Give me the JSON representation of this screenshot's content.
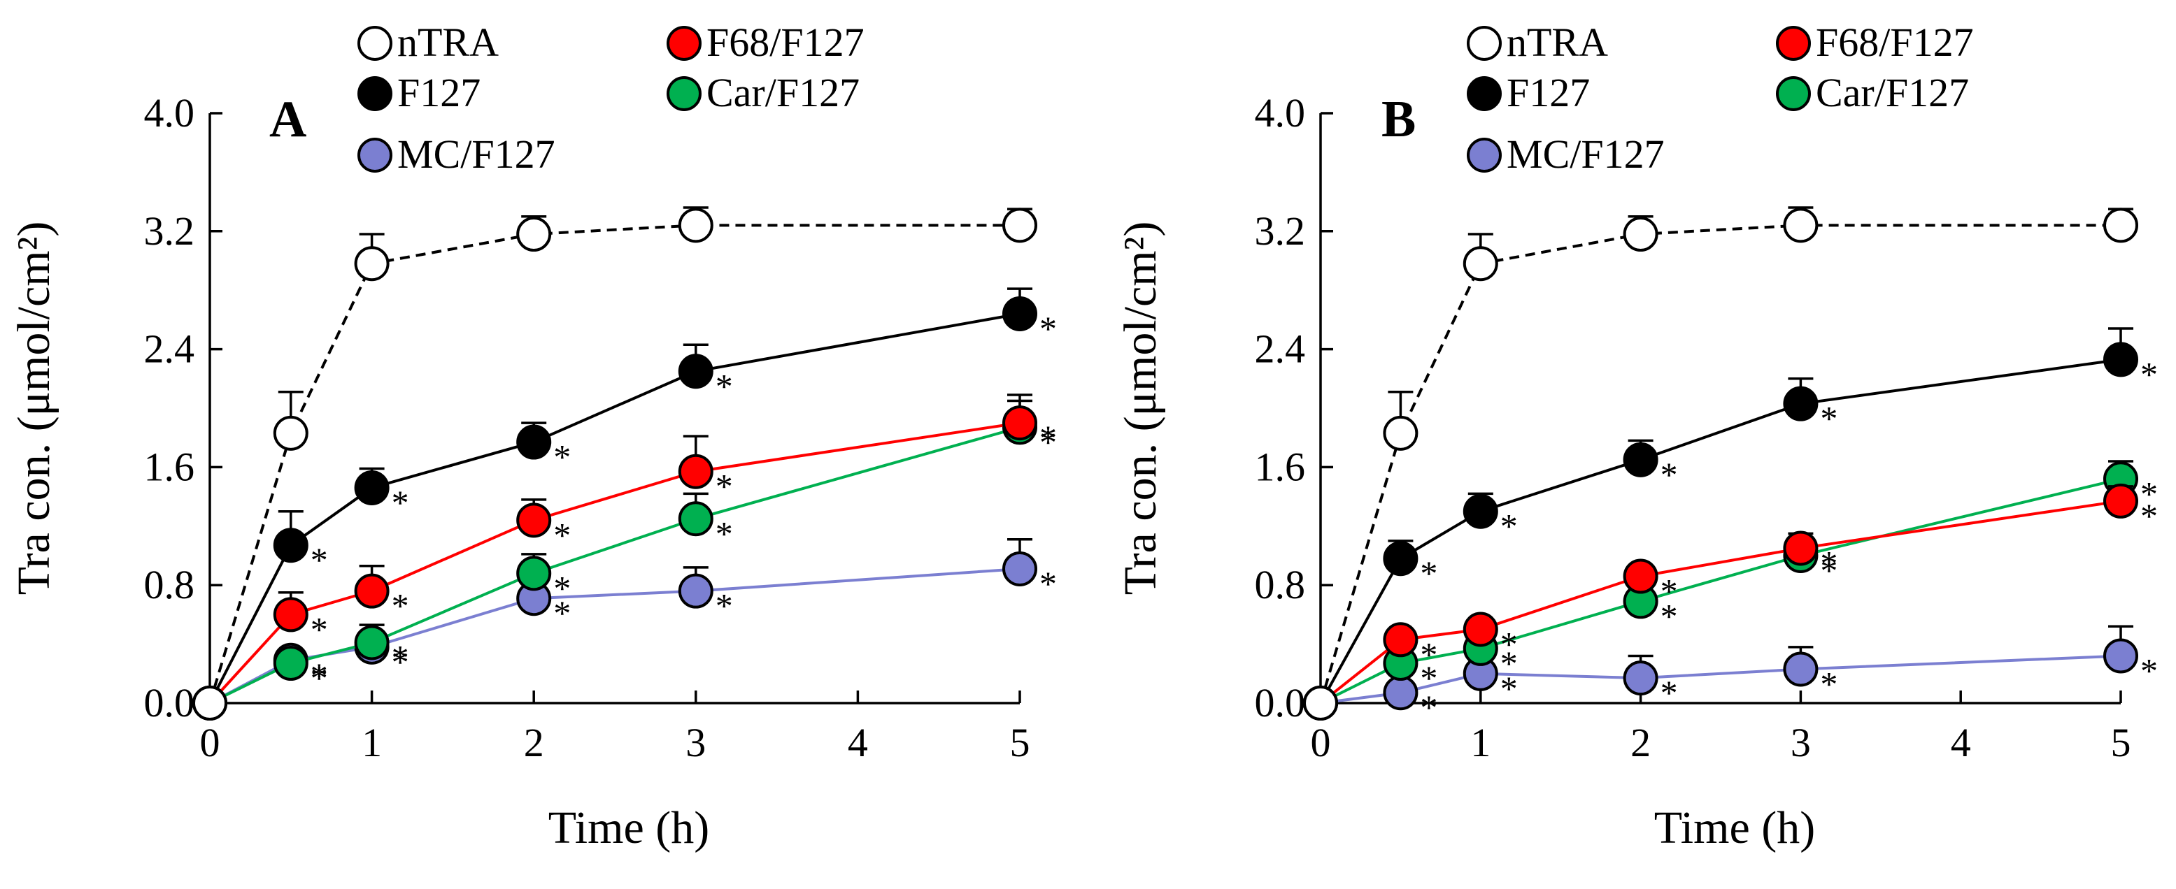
{
  "chart_data": [
    {
      "type": "line",
      "panel_label": "A",
      "xlabel": "Time (h)",
      "ylabel": "Tra con. (μmol/cm²)",
      "xlim": [
        0,
        5
      ],
      "ylim": [
        0,
        4
      ],
      "x_ticks": [
        "0",
        "1",
        "2",
        "3",
        "4",
        "5"
      ],
      "y_ticks": [
        "0.0",
        "0.8",
        "1.6",
        "2.4",
        "3.2",
        "4.0"
      ],
      "legend_position": "top",
      "x": [
        0,
        0.5,
        1,
        2,
        3,
        5
      ],
      "series": [
        {
          "name": "nTRA",
          "color": "#ffffff",
          "line": "dashed",
          "values": [
            0,
            1.83,
            2.98,
            3.18,
            3.24,
            3.24
          ],
          "errors": [
            0,
            0.28,
            0.2,
            0.12,
            0.12,
            0.11
          ],
          "significance": [
            "",
            "",
            "",
            "",
            "",
            ""
          ]
        },
        {
          "name": "F127",
          "color": "#000000",
          "line": "solid",
          "values": [
            0,
            1.07,
            1.46,
            1.77,
            2.25,
            2.64
          ],
          "errors": [
            0,
            0.23,
            0.13,
            0.13,
            0.18,
            0.17
          ],
          "significance": [
            "",
            "*",
            "*",
            "*",
            "*",
            "*"
          ]
        },
        {
          "name": "F68/F127",
          "color": "#ff0000",
          "line": "solid",
          "values": [
            0,
            0.6,
            0.76,
            1.24,
            1.57,
            1.9
          ],
          "errors": [
            0,
            0.15,
            0.17,
            0.14,
            0.24,
            0.19
          ],
          "significance": [
            "",
            "*",
            "*",
            "*",
            "*",
            "*"
          ]
        },
        {
          "name": "Car/F127",
          "color": "#00b050",
          "line": "solid",
          "values": [
            0,
            0.27,
            0.41,
            0.88,
            1.25,
            1.87
          ],
          "errors": [
            0,
            0.07,
            0.12,
            0.13,
            0.17,
            0.18
          ],
          "significance": [
            "",
            "*",
            "*",
            "*",
            "*",
            "*"
          ]
        },
        {
          "name": "MC/F127",
          "color": "#7b7fd1",
          "line": "solid",
          "values": [
            0,
            0.29,
            0.38,
            0.71,
            0.76,
            0.91
          ],
          "errors": [
            0,
            0.07,
            0.1,
            0.1,
            0.16,
            0.2
          ],
          "significance": [
            "",
            "*",
            "*",
            "*",
            "*",
            "*"
          ]
        }
      ]
    },
    {
      "type": "line",
      "panel_label": "B",
      "xlabel": "Time (h)",
      "ylabel": "Tra con. (μmol/cm²)",
      "xlim": [
        0,
        5
      ],
      "ylim": [
        0,
        4
      ],
      "x_ticks": [
        "0",
        "1",
        "2",
        "3",
        "4",
        "5"
      ],
      "y_ticks": [
        "0.0",
        "0.8",
        "1.6",
        "2.4",
        "3.2",
        "4.0"
      ],
      "legend_position": "top",
      "x": [
        0,
        0.5,
        1,
        2,
        3,
        5
      ],
      "series": [
        {
          "name": "nTRA",
          "color": "#ffffff",
          "line": "dashed",
          "values": [
            0,
            1.83,
            2.98,
            3.18,
            3.24,
            3.24
          ],
          "errors": [
            0,
            0.28,
            0.2,
            0.12,
            0.12,
            0.11
          ],
          "significance": [
            "",
            "",
            "",
            "",
            "",
            ""
          ]
        },
        {
          "name": "F127",
          "color": "#000000",
          "line": "solid",
          "values": [
            0,
            0.98,
            1.3,
            1.65,
            2.03,
            2.33
          ],
          "errors": [
            0,
            0.12,
            0.12,
            0.13,
            0.17,
            0.21
          ],
          "significance": [
            "",
            "*",
            "*",
            "*",
            "*",
            "*"
          ]
        },
        {
          "name": "F68/F127",
          "color": "#ff0000",
          "line": "solid",
          "values": [
            0,
            0.43,
            0.5,
            0.86,
            1.05,
            1.37
          ],
          "errors": [
            0,
            0.07,
            0.07,
            0.07,
            0.1,
            0.1
          ],
          "significance": [
            "",
            "*",
            "*",
            "*",
            "*",
            "*"
          ]
        },
        {
          "name": "Car/F127",
          "color": "#00b050",
          "line": "solid",
          "values": [
            0,
            0.27,
            0.37,
            0.69,
            1.0,
            1.52
          ],
          "errors": [
            0,
            0.07,
            0.1,
            0.12,
            0.12,
            0.12
          ],
          "significance": [
            "",
            "*",
            "*",
            "*",
            "*",
            "*"
          ]
        },
        {
          "name": "MC/F127",
          "color": "#7b7fd1",
          "line": "solid",
          "values": [
            0,
            0.07,
            0.2,
            0.17,
            0.23,
            0.32
          ],
          "errors": [
            0,
            0.07,
            0.13,
            0.15,
            0.15,
            0.2
          ],
          "significance": [
            "",
            "*",
            "*",
            "*",
            "*",
            "*"
          ]
        }
      ]
    }
  ]
}
